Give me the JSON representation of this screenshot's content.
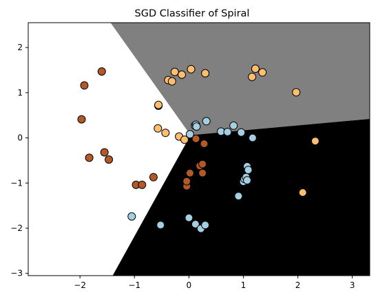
{
  "chart_data": {
    "type": "scatter",
    "title": "SGD Classifier of Spiral",
    "xlabel": "",
    "ylabel": "",
    "xlim": [
      -2.95,
      3.32
    ],
    "ylim": [
      -3.05,
      2.55
    ],
    "xticks": [
      -2,
      -1,
      0,
      1,
      2,
      3
    ],
    "yticks": [
      -3,
      -2,
      -1,
      0,
      1,
      2
    ],
    "xtick_labels": [
      "−2",
      "−1",
      "0",
      "1",
      "2",
      "3"
    ],
    "ytick_labels": [
      "−3",
      "−2",
      "−1",
      "0",
      "1",
      "2"
    ],
    "grid": false,
    "background_regions": [
      {
        "color": "#ffffff",
        "polygon": [
          [
            -2.95,
            2.55
          ],
          [
            -1.44,
            2.55
          ],
          [
            0.03,
            0.06
          ],
          [
            -1.4,
            -3.05
          ],
          [
            -2.95,
            -3.05
          ]
        ]
      },
      {
        "color": "#808080",
        "polygon": [
          [
            -1.44,
            2.55
          ],
          [
            3.32,
            2.55
          ],
          [
            3.32,
            0.42
          ],
          [
            0.03,
            0.06
          ]
        ]
      },
      {
        "color": "#000000",
        "polygon": [
          [
            0.03,
            0.06
          ],
          [
            3.32,
            0.42
          ],
          [
            3.32,
            -3.05
          ],
          [
            -1.4,
            -3.05
          ]
        ]
      }
    ],
    "series": [
      {
        "color": "#b15928",
        "points": [
          [
            -1.97,
            0.41
          ],
          [
            -1.92,
            1.16
          ],
          [
            -1.83,
            -0.44
          ],
          [
            -1.6,
            1.47
          ],
          [
            -1.55,
            -0.32
          ],
          [
            -1.47,
            -0.48
          ],
          [
            -0.97,
            -1.04
          ],
          [
            -0.86,
            -1.04
          ],
          [
            -0.65,
            -0.87
          ],
          [
            -0.04,
            -1.07
          ],
          [
            -0.04,
            -0.96
          ],
          [
            0.02,
            -0.78
          ],
          [
            0.13,
            -0.02
          ],
          [
            0.2,
            -0.62
          ],
          [
            0.25,
            -0.58
          ],
          [
            0.25,
            -0.78
          ],
          [
            0.28,
            -0.13
          ]
        ]
      },
      {
        "color": "#fdbf6f",
        "points": [
          [
            -0.56,
            0.71
          ],
          [
            -0.56,
            0.73
          ],
          [
            -0.57,
            0.21
          ],
          [
            -0.43,
            0.11
          ],
          [
            -0.38,
            1.28
          ],
          [
            -0.31,
            1.25
          ],
          [
            -0.26,
            1.46
          ],
          [
            -0.18,
            0.03
          ],
          [
            -0.13,
            1.4
          ],
          [
            -0.08,
            -0.04
          ],
          [
            0.04,
            1.52
          ],
          [
            0.3,
            1.43
          ],
          [
            1.16,
            1.35
          ],
          [
            1.22,
            1.53
          ],
          [
            1.35,
            1.45
          ],
          [
            1.97,
            1.01
          ],
          [
            2.09,
            -1.21
          ],
          [
            2.32,
            -0.07
          ]
        ]
      },
      {
        "color": "#a6cee3",
        "points": [
          [
            -1.05,
            -1.74
          ],
          [
            -0.52,
            -1.93
          ],
          [
            0.0,
            -1.77
          ],
          [
            0.02,
            0.08
          ],
          [
            0.11,
            0.27
          ],
          [
            0.13,
            0.29
          ],
          [
            0.14,
            0.25
          ],
          [
            0.12,
            -1.91
          ],
          [
            0.22,
            -2.01
          ],
          [
            0.3,
            -1.93
          ],
          [
            0.32,
            0.37
          ],
          [
            0.59,
            0.14
          ],
          [
            0.71,
            0.13
          ],
          [
            0.82,
            0.27
          ],
          [
            0.91,
            -1.29
          ],
          [
            0.96,
            0.12
          ],
          [
            1.0,
            -0.97
          ],
          [
            1.02,
            -0.91
          ],
          [
            1.05,
            -0.87
          ],
          [
            1.07,
            -0.94
          ],
          [
            1.07,
            -0.63
          ],
          [
            1.09,
            -0.71
          ],
          [
            1.17,
            0.0
          ]
        ]
      }
    ]
  }
}
